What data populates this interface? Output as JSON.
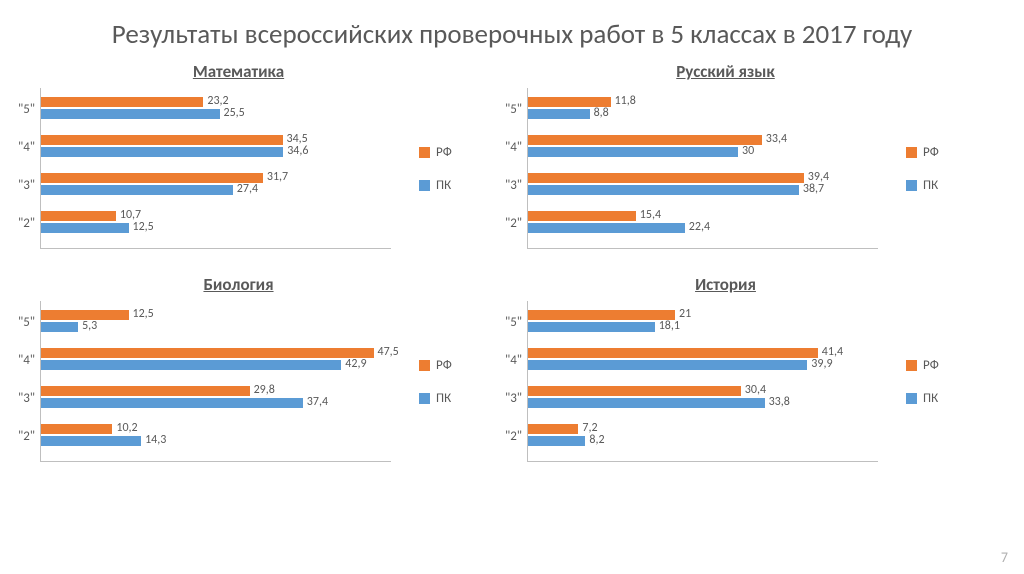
{
  "title": "Результаты всероссийских проверочных работ в 5 классах в 2017 году",
  "page_number": "7",
  "colors": {
    "rf": "#ed7d31",
    "pk": "#5b9bd5",
    "axis": "#bfbfbf",
    "text": "#595959",
    "bg": "#ffffff"
  },
  "legend": {
    "rf": "РФ",
    "pk": "ПК"
  },
  "xmax": 50,
  "panels": [
    {
      "title": "Математика",
      "rows": [
        {
          "label": "\"5\"",
          "rf": 23.2,
          "pk": 25.5,
          "rf_txt": "23,2",
          "pk_txt": "25,5"
        },
        {
          "label": "\"4\"",
          "rf": 34.5,
          "pk": 34.6,
          "rf_txt": "34,5",
          "pk_txt": "34,6"
        },
        {
          "label": "\"3\"",
          "rf": 31.7,
          "pk": 27.4,
          "rf_txt": "31,7",
          "pk_txt": "27,4"
        },
        {
          "label": "\"2\"",
          "rf": 10.7,
          "pk": 12.5,
          "rf_txt": "10,7",
          "pk_txt": "12,5"
        }
      ]
    },
    {
      "title": "Русский язык",
      "rows": [
        {
          "label": "\"5\"",
          "rf": 11.8,
          "pk": 8.8,
          "rf_txt": "11,8",
          "pk_txt": "8,8"
        },
        {
          "label": "\"4\"",
          "rf": 33.4,
          "pk": 30,
          "rf_txt": "33,4",
          "pk_txt": "30"
        },
        {
          "label": "\"3\"",
          "rf": 39.4,
          "pk": 38.7,
          "rf_txt": "39,4",
          "pk_txt": "38,7"
        },
        {
          "label": "\"2\"",
          "rf": 15.4,
          "pk": 22.4,
          "rf_txt": "15,4",
          "pk_txt": "22,4"
        }
      ]
    },
    {
      "title": "Биология",
      "rows": [
        {
          "label": "\"5\"",
          "rf": 12.5,
          "pk": 5.3,
          "rf_txt": "12,5",
          "pk_txt": "5,3"
        },
        {
          "label": "\"4\"",
          "rf": 47.5,
          "pk": 42.9,
          "rf_txt": "47,5",
          "pk_txt": "42,9"
        },
        {
          "label": "\"3\"",
          "rf": 29.8,
          "pk": 37.4,
          "rf_txt": "29,8",
          "pk_txt": "37,4"
        },
        {
          "label": "\"2\"",
          "rf": 10.2,
          "pk": 14.3,
          "rf_txt": "10,2",
          "pk_txt": "14,3"
        }
      ]
    },
    {
      "title": "История",
      "rows": [
        {
          "label": "\"5\"",
          "rf": 21,
          "pk": 18.1,
          "rf_txt": "21",
          "pk_txt": "18,1"
        },
        {
          "label": "\"4\"",
          "rf": 41.4,
          "pk": 39.9,
          "rf_txt": "41,4",
          "pk_txt": "39,9"
        },
        {
          "label": "\"3\"",
          "rf": 30.4,
          "pk": 33.8,
          "rf_txt": "30,4",
          "pk_txt": "33,8"
        },
        {
          "label": "\"2\"",
          "rf": 7.2,
          "pk": 8.2,
          "rf_txt": "7,2",
          "pk_txt": "8,2"
        }
      ]
    }
  ]
}
